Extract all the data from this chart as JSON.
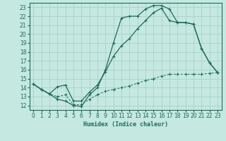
{
  "xlabel": "Humidex (Indice chaleur)",
  "xlim": [
    -0.5,
    23.5
  ],
  "ylim": [
    11.5,
    23.5
  ],
  "xticks": [
    0,
    1,
    2,
    3,
    4,
    5,
    6,
    7,
    8,
    9,
    10,
    11,
    12,
    13,
    14,
    15,
    16,
    17,
    18,
    19,
    20,
    21,
    22,
    23
  ],
  "yticks": [
    12,
    13,
    14,
    15,
    16,
    17,
    18,
    19,
    20,
    21,
    22,
    23
  ],
  "bg_color": "#c5e8e0",
  "grid_color": "#aed4cc",
  "line_color": "#1e6b5a",
  "line1_x": [
    0,
    1,
    2,
    3,
    4,
    5,
    6,
    7,
    8,
    9,
    10,
    11,
    12,
    13,
    14,
    15,
    16,
    17,
    18,
    19,
    20,
    21,
    22,
    23
  ],
  "line1_y": [
    14.4,
    13.8,
    13.3,
    12.7,
    12.5,
    12.0,
    11.9,
    13.2,
    14.0,
    16.0,
    19.0,
    21.8,
    22.0,
    22.0,
    22.8,
    23.2,
    23.2,
    22.8,
    21.3,
    21.3,
    21.1,
    18.4,
    16.8,
    15.7
  ],
  "line2_x": [
    0,
    1,
    2,
    3,
    4,
    5,
    6,
    7,
    8,
    9,
    10,
    11,
    12,
    13,
    14,
    15,
    16,
    17,
    18,
    19,
    20,
    21,
    22,
    23
  ],
  "line2_y": [
    14.4,
    13.8,
    13.3,
    14.1,
    14.3,
    12.5,
    12.5,
    13.5,
    14.3,
    15.8,
    17.5,
    18.7,
    19.5,
    20.6,
    21.5,
    22.4,
    22.9,
    21.5,
    21.3,
    21.3,
    21.1,
    18.4,
    16.8,
    15.7
  ],
  "line3_x": [
    0,
    1,
    2,
    3,
    4,
    5,
    6,
    7,
    8,
    9,
    10,
    11,
    12,
    13,
    14,
    15,
    16,
    17,
    18,
    19,
    20,
    21,
    22,
    23
  ],
  "line3_y": [
    14.4,
    13.8,
    13.3,
    13.0,
    13.2,
    12.1,
    12.1,
    12.7,
    13.2,
    13.6,
    13.8,
    14.0,
    14.2,
    14.5,
    14.8,
    15.0,
    15.3,
    15.5,
    15.5,
    15.5,
    15.5,
    15.5,
    15.6,
    15.7
  ]
}
